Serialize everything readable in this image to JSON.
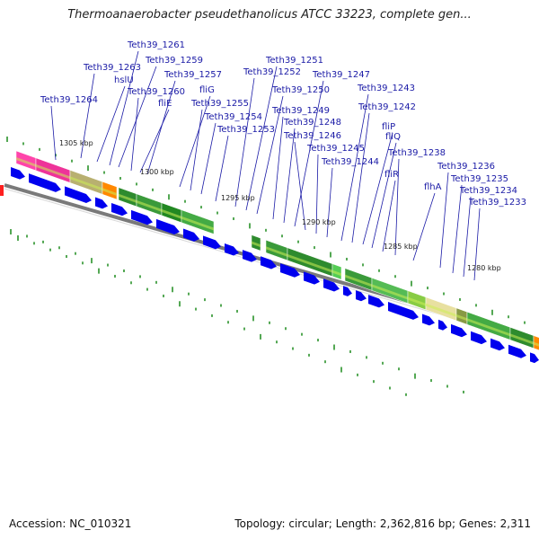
{
  "title": "Thermoanaerobacter pseudethanolicus ATCC 33223, complete gen...",
  "footer": {
    "accession": "Accession: NC_010321",
    "topology": "Topology: circular; Length: 2,362,816 bp; Genes: 2,311"
  },
  "positions": [
    "1305 kbp",
    "1300 kbp",
    "1295 kbp",
    "1290 kbp",
    "1285 kbp",
    "1280 kbp"
  ],
  "genes": [
    "Teth39_1264",
    "Teth39_1263",
    "hslU",
    "Teth39_1261",
    "Teth39_1259",
    "Teth39_1260",
    "fliE",
    "Teth39_1257",
    "fliG",
    "Teth39_1255",
    "Teth39_1254",
    "Teth39_1253",
    "Teth39_1252",
    "Teth39_1251",
    "Teth39_1250",
    "Teth39_1249",
    "Teth39_1248",
    "Teth39_1247",
    "Teth39_1246",
    "Teth39_1245",
    "Teth39_1244",
    "Teth39_1243",
    "Teth39_1242",
    "fliP",
    "fliQ",
    "fliR",
    "Teth39_1238",
    "flhA",
    "Teth39_1236",
    "Teth39_1235",
    "Teth39_1234",
    "Teth39_1233"
  ],
  "colors": {
    "gene_label": "#1a1aa6",
    "cds_arrow": "#0000ee",
    "backbone": "#7a7a7a",
    "leader_line": "#1a1aa6",
    "tick": "#1a8a1a"
  }
}
